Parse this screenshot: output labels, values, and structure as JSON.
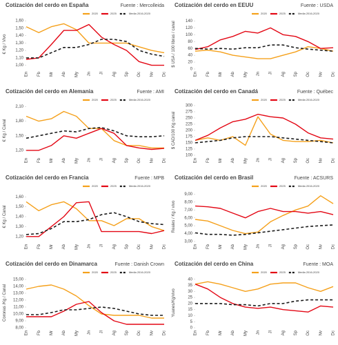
{
  "chart_data": [
    {
      "type": "line",
      "title": "Cotización del cerdo en España",
      "source": "Fuente : Mercolleida",
      "ylabel": "€ Kg / Vivo",
      "categories": [
        "En",
        "Fb",
        "Mr",
        "Ab",
        "My",
        "Jn",
        "Jl",
        "Ag",
        "Sp",
        "Oc",
        "Nv",
        "Dc"
      ],
      "ylim": [
        0.95,
        1.62
      ],
      "yticks": [
        {
          "value": 1.0,
          "label": "1,00"
        },
        {
          "value": 1.1,
          "label": "1,10"
        },
        {
          "value": 1.2,
          "label": "1,20"
        },
        {
          "value": 1.3,
          "label": "1,30"
        },
        {
          "value": 1.4,
          "label": "1,40"
        },
        {
          "value": 1.5,
          "label": "1,50"
        },
        {
          "value": 1.6,
          "label": "1,60"
        }
      ],
      "series": [
        {
          "name": "2020",
          "color": "#f5a01a",
          "style": "solid",
          "values": [
            1.52,
            1.44,
            1.52,
            1.56,
            1.48,
            1.3,
            1.3,
            1.3,
            1.3,
            1.25,
            1.2,
            1.17
          ]
        },
        {
          "name": "2025",
          "color": "#e30613",
          "style": "solid",
          "values": [
            1.08,
            1.1,
            1.28,
            1.47,
            1.47,
            1.55,
            1.38,
            1.28,
            1.2,
            1.05,
            1.0,
            1.0
          ]
        },
        {
          "name": "Media 2016-2020",
          "color": "#1a1a1a",
          "style": "dashed",
          "values": [
            1.1,
            1.1,
            1.17,
            1.24,
            1.24,
            1.28,
            1.35,
            1.35,
            1.32,
            1.2,
            1.15,
            1.12
          ]
        }
      ]
    },
    {
      "type": "line",
      "title": "Cotización del cerdo en EEUU",
      "source": "Fuente : USDA",
      "ylabel": "$ USA / 100 libras / canal",
      "categories": [
        "En",
        "Fb",
        "Mr",
        "Ab",
        "My",
        "Jn",
        "Jl",
        "Ag",
        "Sp",
        "Oc",
        "Nv",
        "Dc"
      ],
      "ylim": [
        0,
        145
      ],
      "yticks": [
        0,
        20,
        40,
        60,
        80,
        100,
        120,
        140
      ],
      "series": [
        {
          "name": "2020",
          "color": "#f5a01a",
          "style": "solid",
          "values": [
            52,
            55,
            50,
            40,
            35,
            30,
            30,
            40,
            50,
            65,
            60,
            52
          ]
        },
        {
          "name": "2025",
          "color": "#e30613",
          "style": "solid",
          "values": [
            57,
            65,
            85,
            95,
            110,
            105,
            120,
            100,
            95,
            80,
            60,
            62
          ]
        },
        {
          "name": "Media 2016-2020",
          "color": "#1a1a1a",
          "style": "dashed",
          "values": [
            60,
            58,
            60,
            58,
            62,
            62,
            70,
            70,
            62,
            58,
            55,
            52
          ]
        }
      ]
    },
    {
      "type": "line",
      "title": "Cotización del cerdo en Alemania",
      "source": "Fuente : AMI",
      "ylabel": "€ Kg / Canal",
      "categories": [
        "En",
        "Fb",
        "Mr",
        "Ab",
        "My",
        "Jn",
        "Jl",
        "Ag",
        "Sp",
        "Oc",
        "Nv",
        "Dc"
      ],
      "ylim": [
        1.1,
        2.12
      ],
      "yticks": [
        {
          "value": 1.2,
          "label": "1,20"
        },
        {
          "value": 1.5,
          "label": "1,50"
        },
        {
          "value": 1.8,
          "label": "1,80"
        },
        {
          "value": 2.1,
          "label": "2,10"
        }
      ],
      "series": [
        {
          "name": "2020",
          "color": "#f5a01a",
          "style": "solid",
          "values": [
            1.9,
            1.8,
            1.85,
            2.0,
            1.9,
            1.65,
            1.65,
            1.4,
            1.3,
            1.3,
            1.25,
            1.25
          ]
        },
        {
          "name": "2025",
          "color": "#e30613",
          "style": "solid",
          "values": [
            1.2,
            1.2,
            1.3,
            1.5,
            1.45,
            1.55,
            1.65,
            1.55,
            1.3,
            1.25,
            1.22,
            1.24
          ]
        },
        {
          "name": "Media 2016-2020",
          "color": "#1a1a1a",
          "style": "dashed",
          "values": [
            1.45,
            1.5,
            1.55,
            1.6,
            1.58,
            1.65,
            1.67,
            1.6,
            1.5,
            1.48,
            1.48,
            1.5
          ]
        }
      ]
    },
    {
      "type": "line",
      "title": "Cotización del cerdo en Canadá",
      "source": "Fuente : Québec",
      "ylabel": "$ CAD/100 Kg canal",
      "categories": [
        "En",
        "Fb",
        "Mr",
        "Ab",
        "My",
        "Jn",
        "Jl",
        "Ag",
        "Sp",
        "Oc",
        "Nv",
        "Dc"
      ],
      "ylim": [
        100,
        300
      ],
      "yticks": [
        100,
        125,
        150,
        175,
        200,
        225,
        250,
        275,
        300
      ],
      "series": [
        {
          "name": "2020",
          "color": "#f5a01a",
          "style": "solid",
          "values": [
            160,
            170,
            160,
            175,
            140,
            255,
            185,
            160,
            155,
            155,
            160,
            150
          ]
        },
        {
          "name": "2025",
          "color": "#e30613",
          "style": "solid",
          "values": [
            160,
            180,
            210,
            235,
            245,
            265,
            255,
            250,
            225,
            190,
            170,
            165
          ]
        },
        {
          "name": "Media 2016-2020",
          "color": "#1a1a1a",
          "style": "dashed",
          "values": [
            150,
            155,
            160,
            170,
            175,
            175,
            175,
            170,
            165,
            160,
            155,
            150
          ]
        }
      ]
    },
    {
      "type": "line",
      "title": "Cotización del cerdo en Francia",
      "source": "Fuente : MPB",
      "ylabel": "€ Kg / Canal",
      "categories": [
        "En",
        "Fb",
        "Mr",
        "Ab",
        "My",
        "Jn",
        "Jl",
        "Ag",
        "Sp",
        "Oc",
        "Nv",
        "Dc"
      ],
      "ylim": [
        1.15,
        1.65
      ],
      "yticks": [
        {
          "value": 1.2,
          "label": "1,20"
        },
        {
          "value": 1.3,
          "label": "1,30"
        },
        {
          "value": 1.4,
          "label": "1,40"
        },
        {
          "value": 1.5,
          "label": "1,50"
        },
        {
          "value": 1.6,
          "label": "1,60"
        }
      ],
      "series": [
        {
          "name": "2020",
          "color": "#f5a01a",
          "style": "solid",
          "values": [
            1.55,
            1.46,
            1.52,
            1.55,
            1.48,
            1.36,
            1.36,
            1.31,
            1.38,
            1.38,
            1.3,
            1.26
          ]
        },
        {
          "name": "2025",
          "color": "#e30613",
          "style": "solid",
          "values": [
            1.2,
            1.2,
            1.3,
            1.4,
            1.54,
            1.55,
            1.25,
            1.25,
            1.25,
            1.25,
            1.23,
            1.26
          ]
        },
        {
          "name": "Media 2016-2020",
          "color": "#1a1a1a",
          "style": "dashed",
          "values": [
            1.22,
            1.23,
            1.28,
            1.35,
            1.35,
            1.37,
            1.42,
            1.44,
            1.4,
            1.35,
            1.33,
            1.32
          ]
        }
      ]
    },
    {
      "type": "line",
      "title": "Cotización del cerdo en Brasil",
      "source": "Fuente : ACSURS",
      "ylabel": "Reales / Kg / vivo",
      "categories": [
        "En",
        "Fb",
        "Mr",
        "Ab",
        "My",
        "Jn",
        "Jl",
        "Ag",
        "Sp",
        "Oc",
        "Nv",
        "Dc"
      ],
      "ylim": [
        3,
        9.3
      ],
      "yticks": [
        {
          "value": 3,
          "label": "3,00"
        },
        {
          "value": 4,
          "label": "4,00"
        },
        {
          "value": 5,
          "label": "5,00"
        },
        {
          "value": 6,
          "label": "6,00"
        },
        {
          "value": 7,
          "label": "7,00"
        },
        {
          "value": 8,
          "label": "8,00"
        },
        {
          "value": 9,
          "label": "9,00"
        }
      ],
      "series": [
        {
          "name": "2020",
          "color": "#f5a01a",
          "style": "solid",
          "values": [
            5.8,
            5.6,
            5.0,
            4.4,
            4.0,
            4.2,
            5.5,
            6.3,
            7.0,
            7.5,
            8.8,
            7.8
          ]
        },
        {
          "name": "2025",
          "color": "#e30613",
          "style": "solid",
          "values": [
            7.5,
            7.4,
            7.2,
            6.6,
            6.0,
            6.8,
            7.2,
            6.8,
            6.8,
            6.6,
            6.8,
            6.4
          ]
        },
        {
          "name": "Media 2016-2020",
          "color": "#1a1a1a",
          "style": "dashed",
          "values": [
            4.1,
            3.9,
            3.9,
            3.8,
            3.9,
            4.1,
            4.3,
            4.5,
            4.7,
            4.9,
            5.0,
            5.1
          ]
        }
      ]
    },
    {
      "type": "line",
      "title": "Cotización del cerdo en Dinamarca",
      "source": "Fuente : Danish Crown",
      "ylabel": "Coronas /Kg / Canal",
      "categories": [
        "En",
        "Fb",
        "Mr",
        "Ab",
        "My",
        "Jn",
        "Jl",
        "Ag",
        "Sp",
        "Oc",
        "Nv",
        "Dc"
      ],
      "ylim": [
        8,
        15.2
      ],
      "yticks": [
        {
          "value": 8,
          "label": "8,00"
        },
        {
          "value": 9,
          "label": "9,00"
        },
        {
          "value": 10,
          "label": "10,00"
        },
        {
          "value": 11,
          "label": "11,00"
        },
        {
          "value": 12,
          "label": "12,00"
        },
        {
          "value": 13,
          "label": "13,00"
        },
        {
          "value": 14,
          "label": "14,00"
        },
        {
          "value": 15,
          "label": "15,00"
        }
      ],
      "series": [
        {
          "name": "2020",
          "color": "#f5a01a",
          "style": "solid",
          "values": [
            13.6,
            14.0,
            14.2,
            13.6,
            12.6,
            11.2,
            10.0,
            9.8,
            9.8,
            9.8,
            9.4,
            9.4
          ]
        },
        {
          "name": "2025",
          "color": "#e30613",
          "style": "solid",
          "values": [
            9.6,
            9.6,
            9.6,
            10.4,
            11.4,
            11.8,
            10.2,
            9.0,
            8.5,
            8.5,
            8.5,
            8.5
          ]
        },
        {
          "name": "Media 2016-2020",
          "color": "#1a1a1a",
          "style": "dashed",
          "values": [
            9.9,
            9.9,
            10.2,
            10.6,
            10.6,
            10.8,
            11.0,
            10.8,
            10.4,
            10.0,
            9.8,
            9.8
          ]
        }
      ]
    },
    {
      "type": "line",
      "title": "Cotización del cerdo en China",
      "source": "Fuente : MOA",
      "ylabel": "Yuanes/Kg/vivo",
      "categories": [
        "En",
        "Fb",
        "Mr",
        "Ab",
        "My",
        "Jn",
        "Jl",
        "Ag",
        "Sp",
        "Oc",
        "Nv",
        "Dc"
      ],
      "ylim": [
        0,
        41
      ],
      "yticks": [
        0,
        5,
        10,
        15,
        20,
        25,
        30,
        35,
        40
      ],
      "series": [
        {
          "name": "2020",
          "color": "#f5a01a",
          "style": "solid",
          "values": [
            36,
            38,
            36,
            33,
            30,
            32,
            36,
            37,
            37,
            33,
            30,
            34
          ]
        },
        {
          "name": "2025",
          "color": "#e30613",
          "style": "solid",
          "values": [
            36,
            32,
            25,
            20,
            17,
            16,
            17,
            15,
            14,
            13,
            18,
            17
          ]
        },
        {
          "name": "Media 2016-2020",
          "color": "#1a1a1a",
          "style": "dashed",
          "values": [
            20,
            20,
            20,
            19,
            19,
            18,
            20,
            20,
            22,
            23,
            23,
            23
          ]
        }
      ]
    }
  ]
}
